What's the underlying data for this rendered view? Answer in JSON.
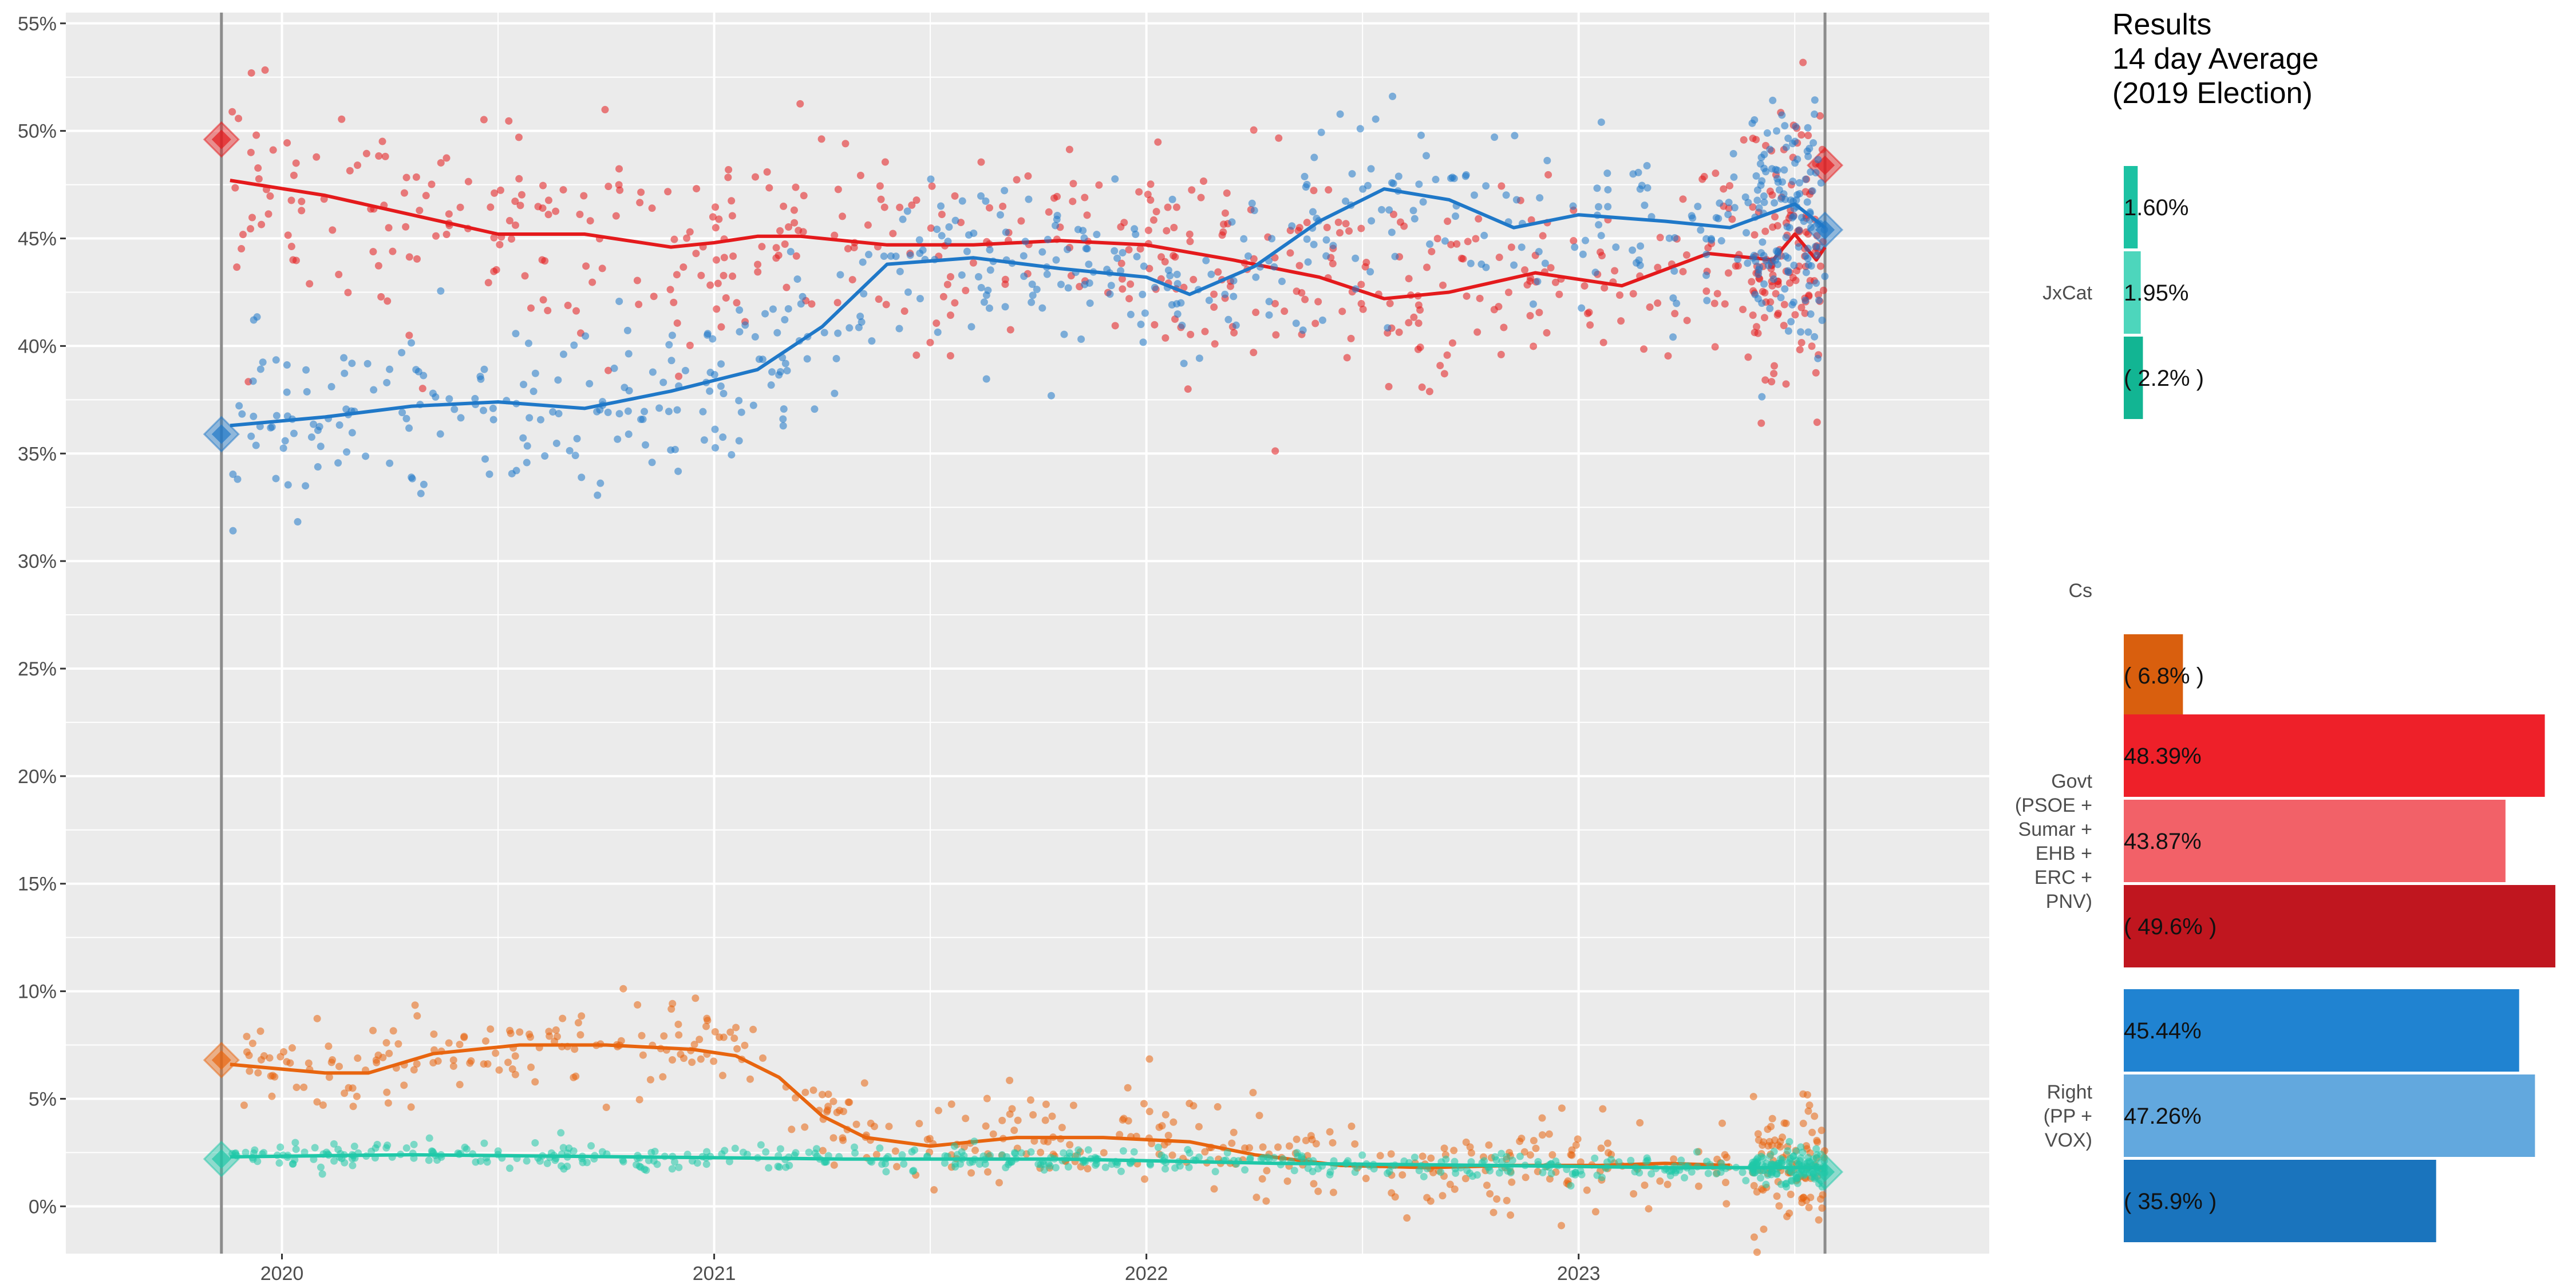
{
  "chart_data": [
    {
      "type": "scatter",
      "yaxis": {
        "min": -0.022,
        "max": 0.555,
        "ticks": [
          0,
          0.05,
          0.1,
          0.15,
          0.2,
          0.25,
          0.3,
          0.35,
          0.4,
          0.45,
          0.5,
          0.55
        ],
        "tick_labels": [
          "0%",
          "5%",
          "10%",
          "15%",
          "20%",
          "25%",
          "30%",
          "35%",
          "40%",
          "45%",
          "50%",
          "55%"
        ]
      },
      "xaxis": {
        "min": 2019.5,
        "max": 2023.95,
        "ticks": [
          2020,
          2021,
          2022,
          2023
        ],
        "tick_labels": [
          "2020",
          "2021",
          "2022",
          "2023"
        ]
      },
      "grid": true,
      "vlines": [
        2019.86,
        2023.57
      ],
      "series": [
        {
          "color": "#e41a1c",
          "trend": [
            [
              2019.88,
              0.477
            ],
            [
              2020.1,
              0.47
            ],
            [
              2020.3,
              0.461
            ],
            [
              2020.5,
              0.452
            ],
            [
              2020.7,
              0.452
            ],
            [
              2020.9,
              0.446
            ],
            [
              2021.0,
              0.448
            ],
            [
              2021.1,
              0.451
            ],
            [
              2021.2,
              0.451
            ],
            [
              2021.4,
              0.447
            ],
            [
              2021.6,
              0.447
            ],
            [
              2021.8,
              0.449
            ],
            [
              2022.0,
              0.447
            ],
            [
              2022.2,
              0.44
            ],
            [
              2022.4,
              0.432
            ],
            [
              2022.55,
              0.422
            ],
            [
              2022.7,
              0.425
            ],
            [
              2022.9,
              0.434
            ],
            [
              2023.1,
              0.428
            ],
            [
              2023.3,
              0.443
            ],
            [
              2023.45,
              0.44
            ],
            [
              2023.5,
              0.452
            ],
            [
              2023.55,
              0.44
            ],
            [
              2023.57,
              0.446
            ]
          ],
          "endpoints": [
            [
              2019.86,
              0.496
            ],
            [
              2023.57,
              0.484
            ]
          ]
        },
        {
          "color": "#1f78c8",
          "trend": [
            [
              2019.88,
              0.363
            ],
            [
              2020.1,
              0.367
            ],
            [
              2020.3,
              0.372
            ],
            [
              2020.5,
              0.374
            ],
            [
              2020.7,
              0.371
            ],
            [
              2020.9,
              0.379
            ],
            [
              2021.1,
              0.389
            ],
            [
              2021.25,
              0.409
            ],
            [
              2021.4,
              0.438
            ],
            [
              2021.6,
              0.441
            ],
            [
              2021.8,
              0.436
            ],
            [
              2022.0,
              0.432
            ],
            [
              2022.1,
              0.424
            ],
            [
              2022.25,
              0.437
            ],
            [
              2022.4,
              0.458
            ],
            [
              2022.55,
              0.473
            ],
            [
              2022.7,
              0.468
            ],
            [
              2022.85,
              0.455
            ],
            [
              2023.0,
              0.461
            ],
            [
              2023.2,
              0.458
            ],
            [
              2023.35,
              0.455
            ],
            [
              2023.5,
              0.466
            ],
            [
              2023.57,
              0.455
            ]
          ],
          "endpoints": [
            [
              2019.86,
              0.359
            ],
            [
              2023.57,
              0.454
            ]
          ]
        },
        {
          "color": "#e8650f",
          "trend": [
            [
              2019.88,
              0.066
            ],
            [
              2020.1,
              0.062
            ],
            [
              2020.2,
              0.062
            ],
            [
              2020.35,
              0.071
            ],
            [
              2020.55,
              0.075
            ],
            [
              2020.75,
              0.075
            ],
            [
              2020.95,
              0.073
            ],
            [
              2021.05,
              0.07
            ],
            [
              2021.15,
              0.06
            ],
            [
              2021.25,
              0.042
            ],
            [
              2021.35,
              0.032
            ],
            [
              2021.5,
              0.028
            ],
            [
              2021.7,
              0.032
            ],
            [
              2021.9,
              0.032
            ],
            [
              2022.1,
              0.03
            ],
            [
              2022.25,
              0.024
            ],
            [
              2022.45,
              0.019
            ],
            [
              2022.65,
              0.018
            ],
            [
              2022.85,
              0.019
            ],
            [
              2023.05,
              0.019
            ],
            [
              2023.2,
              0.02
            ],
            [
              2023.35,
              0.019
            ]
          ],
          "endpoints": [
            [
              2019.86,
              0.068
            ]
          ]
        },
        {
          "color": "#1fc8a8",
          "trend": [
            [
              2019.88,
              0.023
            ],
            [
              2020.3,
              0.024
            ],
            [
              2020.8,
              0.023
            ],
            [
              2021.3,
              0.022
            ],
            [
              2021.8,
              0.022
            ],
            [
              2022.3,
              0.02
            ],
            [
              2022.8,
              0.019
            ],
            [
              2023.2,
              0.018
            ],
            [
              2023.57,
              0.018
            ]
          ],
          "endpoints": [
            [
              2019.86,
              0.022
            ],
            [
              2023.57,
              0.016
            ]
          ]
        }
      ]
    },
    {
      "type": "bar",
      "orientation": "horizontal",
      "title": [
        "Results",
        "14 day Average",
        "(2019 Election)"
      ],
      "xlim": [
        0,
        0.5
      ],
      "groups": [
        {
          "label": [
            "JxCat"
          ],
          "bars": [
            {
              "value": 0.016,
              "label": "1.60%",
              "color": "#1cc2a3"
            },
            {
              "value": 0.0195,
              "label": "1.95%",
              "color": "#4dd6bc"
            },
            {
              "value": 0.022,
              "label": "( 2.2% )",
              "color": "#12b593"
            }
          ]
        },
        {
          "label": [
            "Cs"
          ],
          "bars": [
            {
              "value": 0,
              "label": "",
              "color": "#e8650f"
            },
            {
              "value": 0,
              "label": "",
              "color": "#f08a45"
            },
            {
              "value": 0.068,
              "label": "( 6.8% )",
              "color": "#d95f0e"
            }
          ]
        },
        {
          "label": [
            "Govt",
            "(PSOE +",
            "Sumar +",
            "EHB +",
            "ERC +",
            "PNV)"
          ],
          "bars": [
            {
              "value": 0.4839,
              "label": "48.39%",
              "color": "#ee2029"
            },
            {
              "value": 0.4387,
              "label": "43.87%",
              "color": "#f26168"
            },
            {
              "value": 0.496,
              "label": "( 49.6% )",
              "color": "#c0161f"
            }
          ]
        },
        {
          "label": [
            "Right",
            "(PP +",
            "VOX)"
          ],
          "bars": [
            {
              "value": 0.4544,
              "label": "45.44%",
              "color": "#2083d1"
            },
            {
              "value": 0.4726,
              "label": "47.26%",
              "color": "#62a8de"
            },
            {
              "value": 0.359,
              "label": "( 35.9% )",
              "color": "#1a74bd"
            }
          ]
        }
      ]
    }
  ]
}
